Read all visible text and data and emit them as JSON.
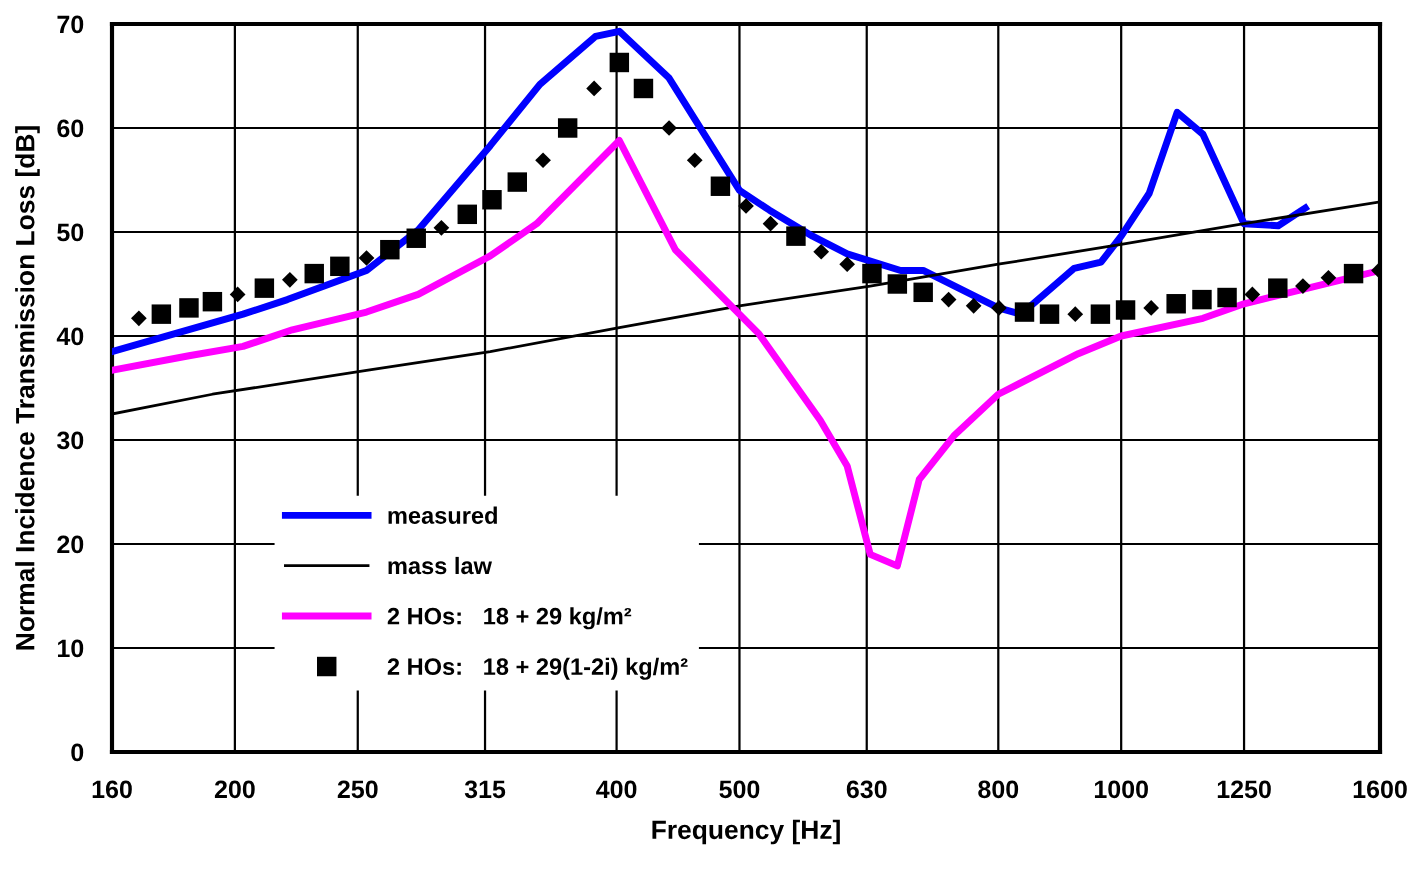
{
  "chart_data": {
    "type": "line",
    "xlabel": "Frequency [Hz]",
    "ylabel": "Normal Incidence Transmission Loss [dB]",
    "log": "x",
    "xlim": [
      160,
      1600
    ],
    "xticks": [
      160,
      200,
      250,
      315,
      400,
      500,
      630,
      800,
      1000,
      1250,
      1600
    ],
    "ylim": [
      0,
      70
    ],
    "yticks": [
      0,
      10,
      20,
      30,
      40,
      50,
      60,
      70
    ],
    "grid": true,
    "legend": "bottom left",
    "series": [
      {
        "name": "measured",
        "color": "#0000ff",
        "x": [
          160,
          203,
          220,
          254,
          279,
          318,
          348,
          385,
          402,
          440,
          500,
          528,
          571,
          608,
          670,
          698,
          800,
          834,
          918,
          964,
          1000,
          1052,
          1107,
          1160,
          1250,
          1330,
          1397
        ],
        "values": [
          38.5,
          42.1,
          43.5,
          46.3,
          50.2,
          58.3,
          64.2,
          68.8,
          69.3,
          64.8,
          54,
          52.1,
          49.6,
          47.9,
          46.3,
          46.3,
          42.7,
          42.1,
          46.5,
          47.1,
          49.6,
          53.7,
          61.5,
          59.4,
          50.8,
          50.6,
          52.3
        ]
      },
      {
        "name": "mass law",
        "color": "#000000",
        "x": [
          160,
          192,
          254,
          318,
          402,
          500,
          634,
          800,
          1000,
          1250,
          1600
        ],
        "values": [
          32.5,
          34.4,
          36.7,
          38.5,
          40.8,
          42.9,
          44.8,
          46.9,
          48.8,
          50.8,
          52.9
        ]
      },
      {
        "name": "2 HOs:   18 + 29 kg/m²",
        "color": "#ff00ff",
        "x": [
          160,
          184,
          203,
          222,
          254,
          279,
          318,
          346,
          402,
          445,
          518,
          579,
          608,
          634,
          666,
          693,
          738,
          800,
          925,
          1000,
          1160,
          1250,
          1600
        ],
        "values": [
          36.7,
          38.1,
          39,
          40.6,
          42.3,
          44,
          47.7,
          50.8,
          58.8,
          48.3,
          40.2,
          31.9,
          27.5,
          19,
          17.9,
          26.2,
          30.4,
          34.4,
          38.3,
          40,
          41.7,
          43.1,
          46.3
        ]
      },
      {
        "name": "2 HOs:   18 + 29(1-2i) kg/m²",
        "type": "scatter",
        "marker": "square",
        "color": "#000000",
        "x": [
          175,
          184,
          192,
          211,
          231,
          242,
          265,
          278,
          305,
          319,
          334,
          366,
          402,
          420,
          483,
          554,
          636,
          666,
          698,
          839,
          878,
          963,
          1008,
          1105,
          1158,
          1212,
          1329,
          1525
        ],
        "values": [
          42.1,
          42.7,
          43.3,
          44.6,
          46,
          46.7,
          48.3,
          49.4,
          51.7,
          53.1,
          54.8,
          60,
          66.3,
          63.8,
          54.4,
          49.6,
          46,
          45,
          44.2,
          42.3,
          42.1,
          42.1,
          42.5,
          43.1,
          43.5,
          43.7,
          44.6,
          46
        ]
      },
      {
        "type": "scatter",
        "marker": "diamond",
        "color": "#000000",
        "x": [
          168,
          201,
          221,
          254,
          291,
          350,
          384,
          440,
          461,
          506,
          529,
          580,
          608,
          731,
          765,
          801,
          920,
          1056,
          1269,
          1391,
          1457,
          1597
        ],
        "values": [
          41.7,
          44,
          45.4,
          47.5,
          50.4,
          56.9,
          63.8,
          60,
          56.9,
          52.5,
          50.8,
          48.1,
          46.9,
          43.5,
          42.9,
          42.7,
          42.1,
          42.7,
          44,
          44.8,
          45.6,
          46.3
        ]
      }
    ]
  }
}
